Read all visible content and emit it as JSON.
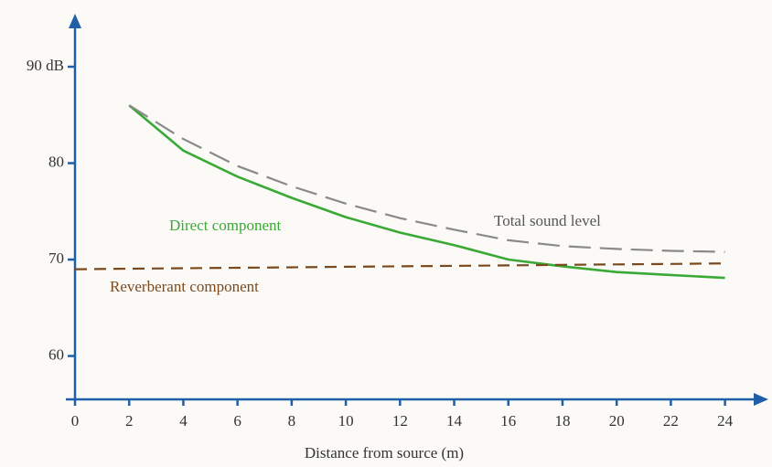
{
  "chart_data": {
    "type": "line",
    "x_label": "Distance from source (m)",
    "x": [
      0,
      2,
      4,
      6,
      8,
      10,
      12,
      14,
      16,
      18,
      20,
      22,
      24
    ],
    "series": [
      {
        "name": "Direct component",
        "color": "#3aa935",
        "style": "solid",
        "values": [
          null,
          86,
          81.3,
          78.6,
          76.4,
          74.4,
          72.8,
          71.5,
          70,
          69.3,
          68.7,
          68.4,
          68.1
        ]
      },
      {
        "name": "Total sound level",
        "color": "#8a8a8a",
        "style": "dashed",
        "values": [
          null,
          86,
          82.5,
          79.7,
          77.6,
          75.8,
          74.3,
          73.1,
          72,
          71.4,
          71.1,
          70.9,
          70.8
        ]
      },
      {
        "name": "Reverberant component",
        "color": "#7a4a1e",
        "style": "dashed",
        "values": [
          69,
          69.05,
          69.1,
          69.15,
          69.2,
          69.25,
          69.3,
          69.35,
          69.4,
          69.45,
          69.5,
          69.55,
          69.6
        ]
      }
    ],
    "xlim": [
      0,
      25.6
    ],
    "ylim": [
      55.5,
      95.5
    ],
    "xticks": [
      0,
      2,
      4,
      6,
      8,
      10,
      12,
      14,
      16,
      18,
      20,
      22,
      24
    ],
    "yticks": [
      60,
      70,
      80,
      {
        "value": 90,
        "label": "90 dB"
      }
    ]
  }
}
